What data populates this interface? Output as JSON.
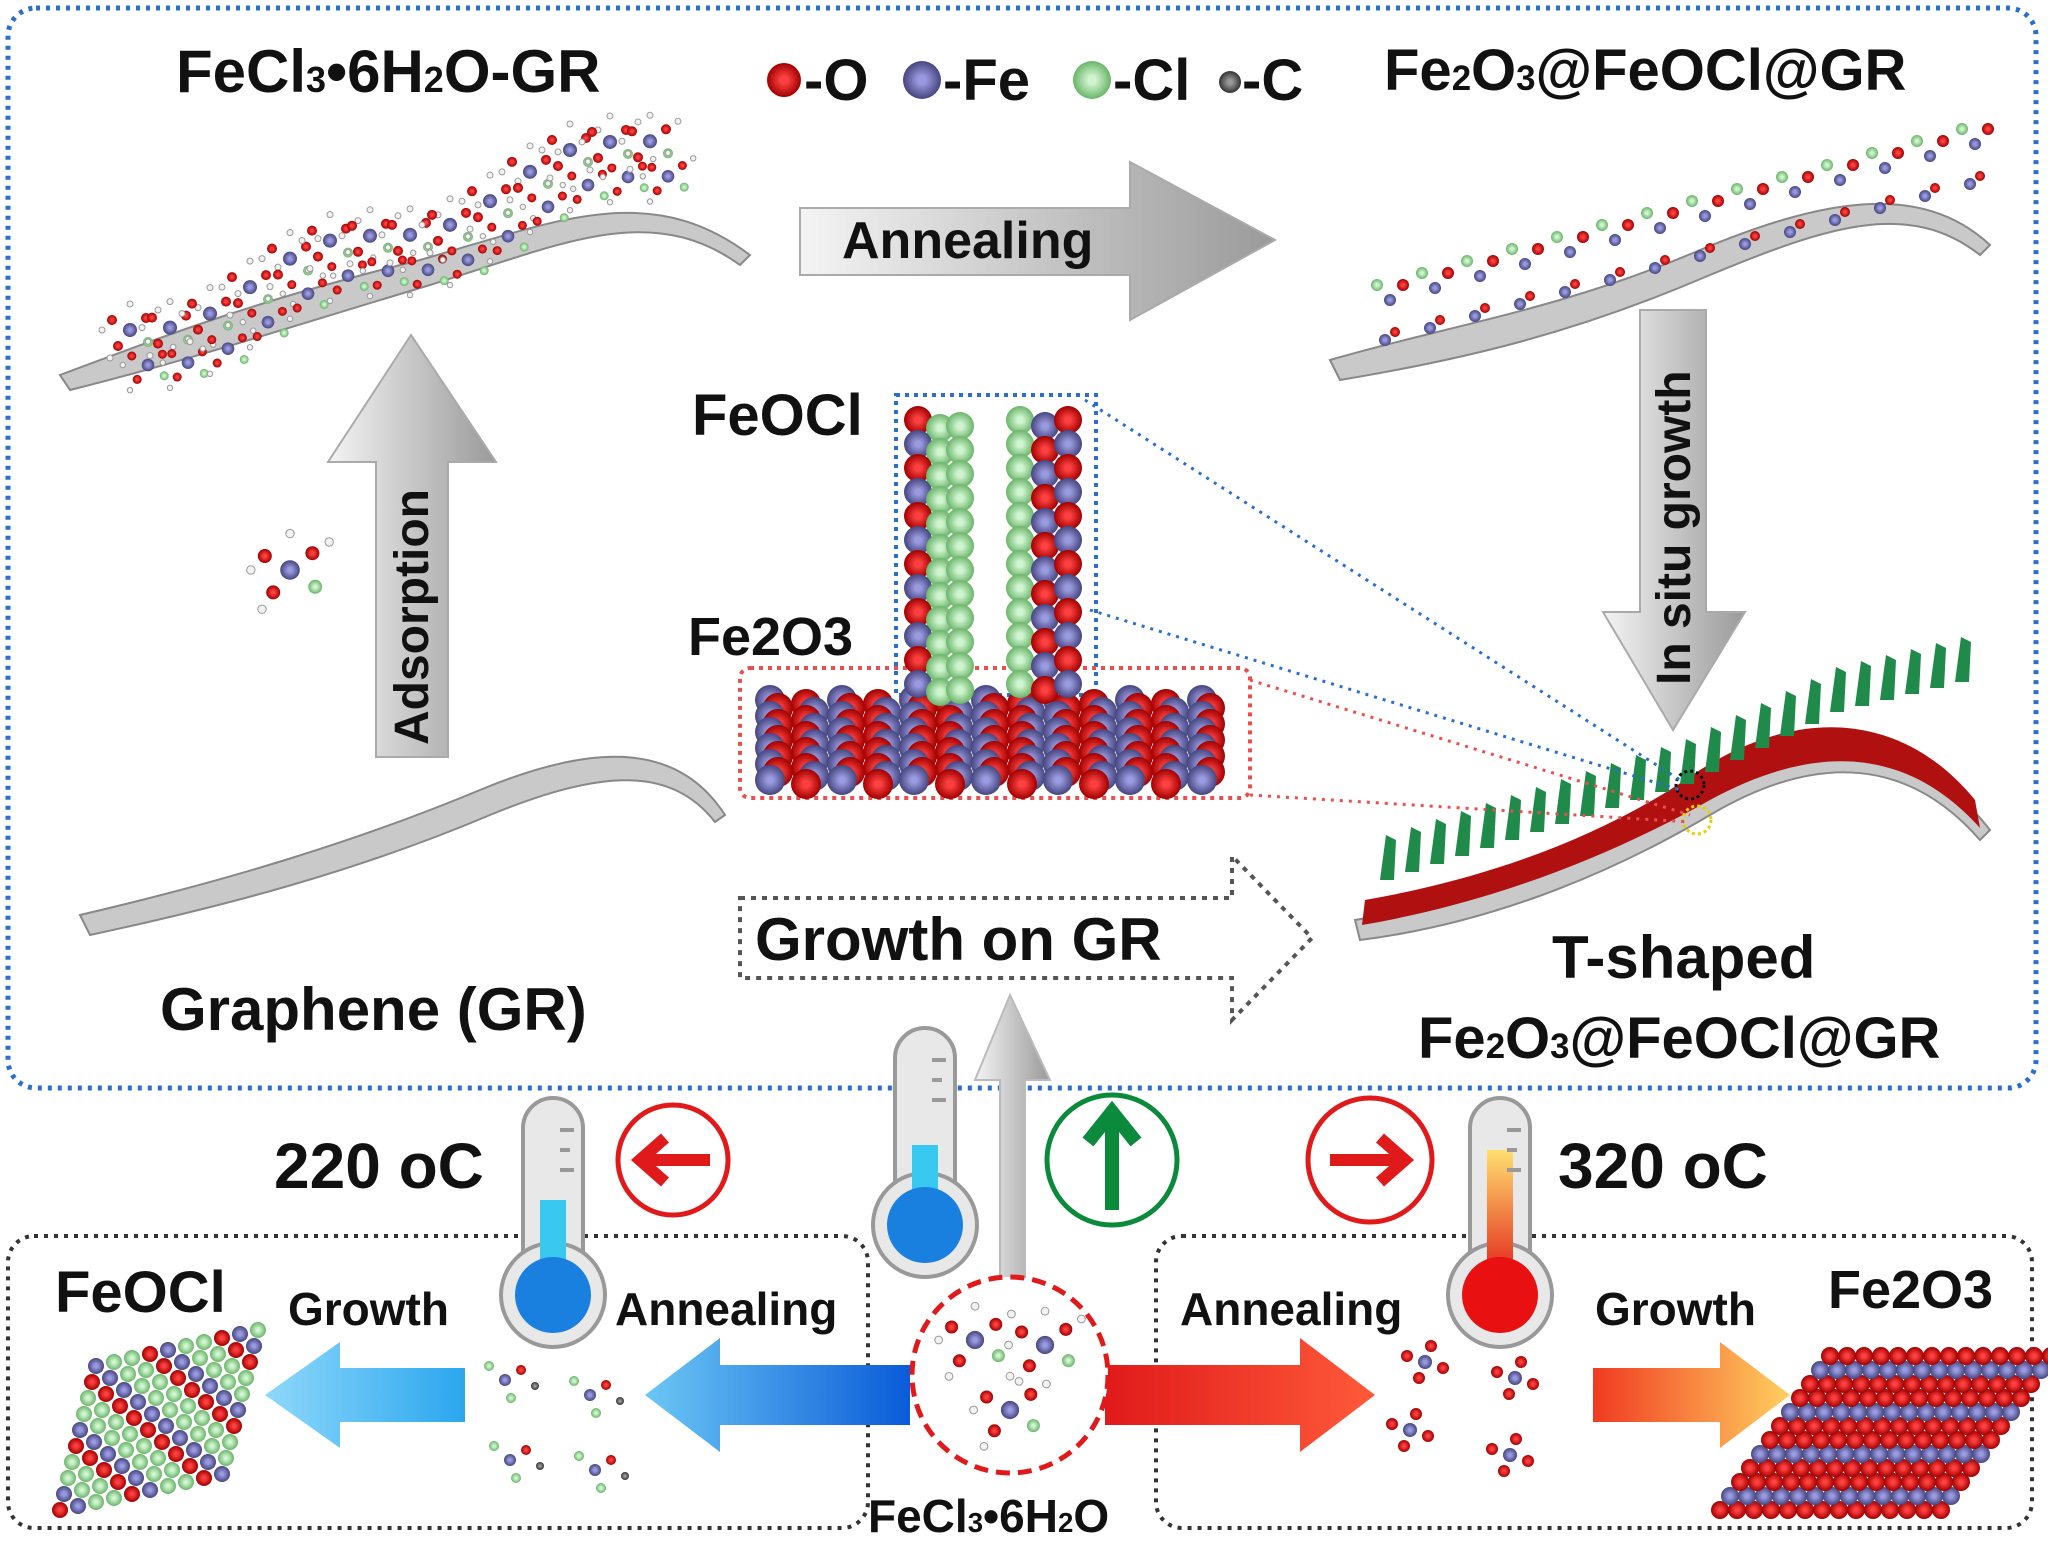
{
  "top": {
    "precursor_gr_title": "FeCl3•6H2O-GR",
    "product_title": "Fe2O3@FeOCl@GR",
    "legend": [
      {
        "label": "-O",
        "color": "#d40000"
      },
      {
        "label": "-Fe",
        "color": "#6b6bb0"
      },
      {
        "label": "-Cl",
        "color": "#8fd48f"
      },
      {
        "label": "-C",
        "color": "#555555"
      }
    ],
    "annealing_label": "Annealing",
    "in_situ_label": "In situ growth",
    "adsorption_label": "Adsorption",
    "feocl_label": "FeOCl",
    "fe2o3_label": "Fe2O3",
    "growth_on_gr_label": "Growth on GR",
    "graphene_label": "Graphene (GR)",
    "t_shaped_line1": "T-shaped",
    "t_shaped_line2": "Fe2O3@FeOCl@GR",
    "growth_on_gr_color": "#1aa04a"
  },
  "bottom": {
    "low_temp": "220 oC",
    "high_temp": "320 oC",
    "low_temp_color": "#1a9ee0",
    "high_temp_color": "#e01a1a",
    "feocl_label": "FeOCl",
    "fe2o3_label": "Fe2O3",
    "growth_left": "Growth",
    "annealing_left": "Annealing",
    "annealing_right": "Annealing",
    "growth_right": "Growth",
    "precursor_label": "FeCl3•6H2O"
  }
}
